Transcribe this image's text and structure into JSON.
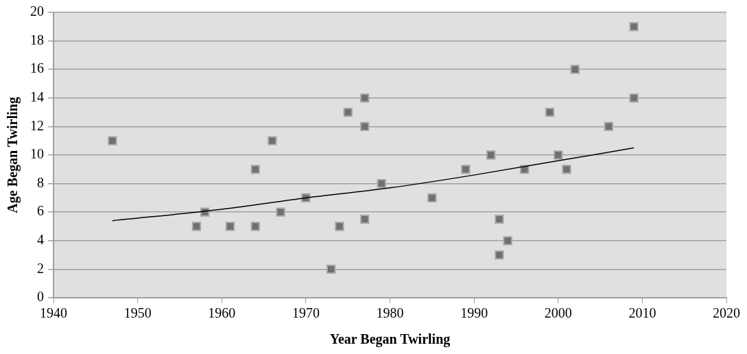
{
  "chart_data": {
    "type": "scatter",
    "xlabel": "Year Began Twirling",
    "ylabel": "Age Began Twirling",
    "xlim": [
      1940,
      2020
    ],
    "xticks": [
      1940,
      1950,
      1960,
      1970,
      1980,
      1990,
      2000,
      2010,
      2020
    ],
    "ylim": [
      0,
      20
    ],
    "yticks": [
      0,
      2,
      4,
      6,
      8,
      10,
      12,
      14,
      16,
      18,
      20
    ],
    "grid": "y",
    "legend": false,
    "marker": "square",
    "series": [
      {
        "color": "#707070",
        "x": [
          1947,
          1957,
          1958,
          1961,
          1964,
          1964,
          1966,
          1967,
          1970,
          1973,
          1974,
          1975,
          1977,
          1977,
          1977,
          1979,
          1985,
          1989,
          1992,
          1993,
          1993,
          1994,
          1996,
          1999,
          2000,
          2001,
          2002,
          2006,
          2009,
          2009
        ],
        "values": [
          11,
          5,
          6,
          5,
          9,
          5,
          11,
          6,
          7,
          2,
          5,
          13,
          14,
          12,
          5.5,
          8,
          7,
          9,
          10,
          5.5,
          3,
          4,
          9,
          13,
          10,
          9,
          16,
          12,
          19,
          14
        ]
      },
      {
        "type": "line",
        "marker": "none",
        "color": "#000000",
        "x": [
          1947,
          1960,
          1970,
          1980,
          1990,
          2000,
          2009
        ],
        "values": [
          5.4,
          6.2,
          7.0,
          7.7,
          8.6,
          9.6,
          10.5
        ]
      }
    ]
  }
}
